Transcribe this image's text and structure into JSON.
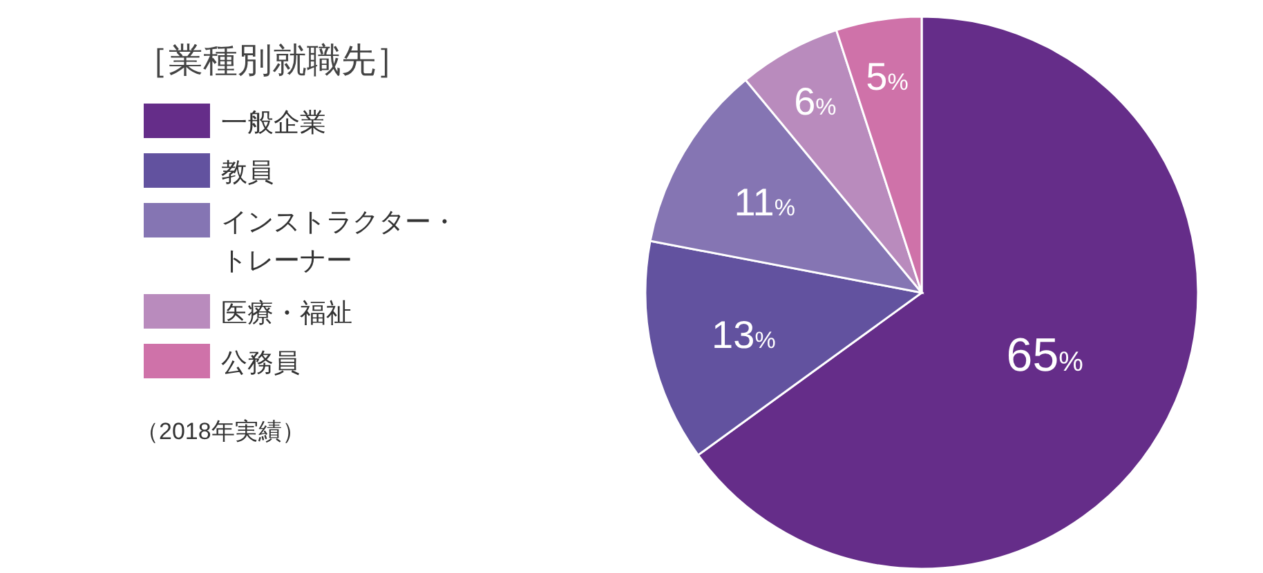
{
  "chart_data": {
    "type": "pie",
    "title": "［業種別就職先］",
    "categories": [
      "一般企業",
      "教員",
      "インストラクター・トレーナー",
      "医療・福祉",
      "公務員"
    ],
    "values": [
      65,
      13,
      11,
      6,
      5
    ],
    "value_labels": [
      "65%",
      "13%",
      "11%",
      "6%",
      "5%"
    ],
    "colors": [
      "#652d89",
      "#62529f",
      "#8575b3",
      "#b98bbd",
      "#cf72a9"
    ],
    "legend": "left",
    "annotations": [
      "（2018年実績）"
    ]
  }
}
